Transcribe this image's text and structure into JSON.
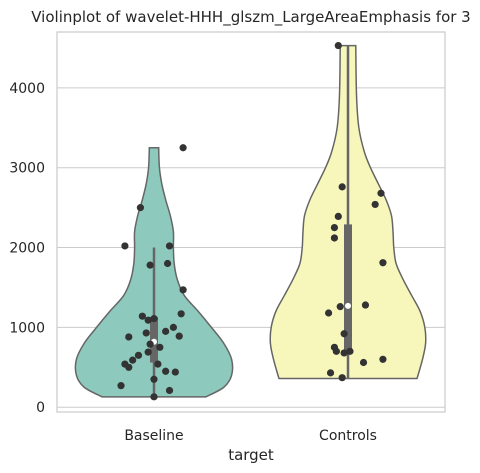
{
  "chart_data": {
    "type": "violin",
    "title": "Violinplot of wavelet-HHH_glszm_LargeAreaEmphasis for 3",
    "xlabel": "target",
    "ylabel": "",
    "ylim": [
      -60,
      4700
    ],
    "yticks": [
      0,
      1000,
      2000,
      3000,
      4000
    ],
    "yticklabels": [
      "0",
      "1000",
      "2000",
      "3000",
      "4000"
    ],
    "grid": true,
    "categories": [
      "Baseline",
      "Controls"
    ],
    "series": [
      {
        "category": "Baseline",
        "color": "#8dc9bd",
        "range": [
          130,
          3250
        ],
        "box": {
          "q1": 560,
          "median": 820,
          "q3": 1130,
          "whisker_low": 130,
          "whisker_high": 2000
        },
        "violin_width_profile": [
          {
            "y": 130,
            "w": 0.67
          },
          {
            "y": 250,
            "w": 0.9
          },
          {
            "y": 400,
            "w": 1.0
          },
          {
            "y": 600,
            "w": 1.0
          },
          {
            "y": 800,
            "w": 0.9
          },
          {
            "y": 1000,
            "w": 0.74
          },
          {
            "y": 1200,
            "w": 0.57
          },
          {
            "y": 1400,
            "w": 0.39
          },
          {
            "y": 1600,
            "w": 0.3
          },
          {
            "y": 1800,
            "w": 0.26
          },
          {
            "y": 2000,
            "w": 0.25
          },
          {
            "y": 2200,
            "w": 0.25
          },
          {
            "y": 2400,
            "w": 0.21
          },
          {
            "y": 2600,
            "w": 0.15
          },
          {
            "y": 2800,
            "w": 0.1
          },
          {
            "y": 3000,
            "w": 0.07
          },
          {
            "y": 3250,
            "w": 0.06
          }
        ],
        "points": [
          {
            "x": 0.15,
            "y": 3250
          },
          {
            "x": -0.07,
            "y": 2500
          },
          {
            "x": -0.15,
            "y": 2020
          },
          {
            "x": 0.08,
            "y": 2020
          },
          {
            "x": -0.02,
            "y": 1780
          },
          {
            "x": 0.07,
            "y": 1800
          },
          {
            "x": 0.15,
            "y": 1470
          },
          {
            "x": 0.14,
            "y": 1170
          },
          {
            "x": -0.06,
            "y": 1140
          },
          {
            "x": 0.0,
            "y": 1110
          },
          {
            "x": -0.03,
            "y": 1090
          },
          {
            "x": 0.1,
            "y": 1000
          },
          {
            "x": 0.06,
            "y": 950
          },
          {
            "x": -0.04,
            "y": 930
          },
          {
            "x": -0.13,
            "y": 880
          },
          {
            "x": 0.13,
            "y": 890
          },
          {
            "x": -0.02,
            "y": 790
          },
          {
            "x": 0.03,
            "y": 750
          },
          {
            "x": -0.03,
            "y": 690
          },
          {
            "x": -0.08,
            "y": 650
          },
          {
            "x": -0.11,
            "y": 590
          },
          {
            "x": -0.15,
            "y": 540
          },
          {
            "x": 0.02,
            "y": 540
          },
          {
            "x": -0.13,
            "y": 500
          },
          {
            "x": 0.06,
            "y": 450
          },
          {
            "x": 0.11,
            "y": 440
          },
          {
            "x": 0.0,
            "y": 350
          },
          {
            "x": -0.17,
            "y": 270
          },
          {
            "x": 0.08,
            "y": 210
          },
          {
            "x": 0.0,
            "y": 130
          }
        ]
      },
      {
        "category": "Controls",
        "color": "#f7f7bb",
        "range": [
          360,
          4530
        ],
        "box": {
          "q1": 690,
          "median": 1270,
          "q3": 2290,
          "whisker_low": 360,
          "whisker_high": 4530
        },
        "violin_width_profile": [
          {
            "y": 360,
            "w": 0.89
          },
          {
            "y": 600,
            "w": 0.96
          },
          {
            "y": 800,
            "w": 1.0
          },
          {
            "y": 1000,
            "w": 0.99
          },
          {
            "y": 1200,
            "w": 0.93
          },
          {
            "y": 1400,
            "w": 0.82
          },
          {
            "y": 1600,
            "w": 0.71
          },
          {
            "y": 1800,
            "w": 0.62
          },
          {
            "y": 2000,
            "w": 0.59
          },
          {
            "y": 2200,
            "w": 0.58
          },
          {
            "y": 2400,
            "w": 0.56
          },
          {
            "y": 2600,
            "w": 0.49
          },
          {
            "y": 2800,
            "w": 0.39
          },
          {
            "y": 3000,
            "w": 0.29
          },
          {
            "y": 3200,
            "w": 0.21
          },
          {
            "y": 3500,
            "w": 0.14
          },
          {
            "y": 3900,
            "w": 0.11
          },
          {
            "y": 4530,
            "w": 0.1
          }
        ],
        "points": [
          {
            "x": -0.05,
            "y": 4530
          },
          {
            "x": -0.03,
            "y": 2760
          },
          {
            "x": 0.17,
            "y": 2680
          },
          {
            "x": 0.14,
            "y": 2540
          },
          {
            "x": -0.05,
            "y": 2390
          },
          {
            "x": -0.07,
            "y": 2250
          },
          {
            "x": -0.07,
            "y": 2120
          },
          {
            "x": 0.18,
            "y": 1810
          },
          {
            "x": 0.09,
            "y": 1280
          },
          {
            "x": -0.04,
            "y": 1260
          },
          {
            "x": -0.1,
            "y": 1180
          },
          {
            "x": -0.02,
            "y": 920
          },
          {
            "x": -0.07,
            "y": 750
          },
          {
            "x": -0.06,
            "y": 700
          },
          {
            "x": -0.02,
            "y": 680
          },
          {
            "x": 0.01,
            "y": 700
          },
          {
            "x": 0.18,
            "y": 600
          },
          {
            "x": 0.08,
            "y": 560
          },
          {
            "x": -0.09,
            "y": 430
          },
          {
            "x": -0.03,
            "y": 370
          }
        ]
      }
    ]
  }
}
